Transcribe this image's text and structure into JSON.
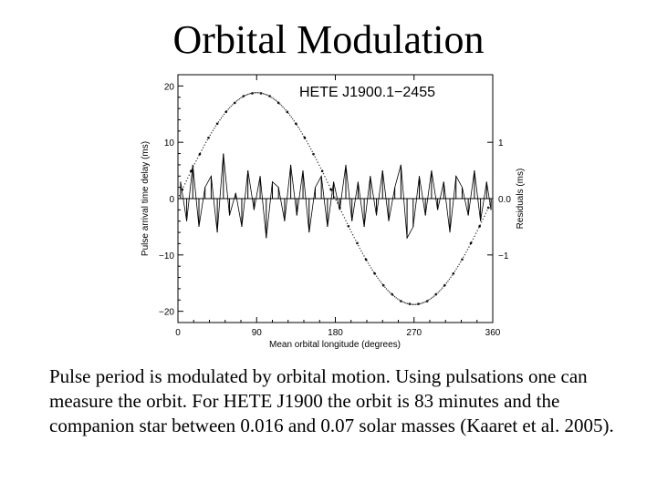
{
  "slide": {
    "title": "Orbital Modulation",
    "caption": "Pulse period is modulated by orbital motion.  Using pulsations one can measure the orbit.  For HETE J1900 the orbit is 83 minutes and the companion star between 0.016 and 0.07 solar masses (Kaaret et al. 2005)."
  },
  "chart_data": {
    "type": "scatter",
    "title": "HETE J1900.1−2455",
    "xlabel": "Mean orbital longitude (degrees)",
    "ylabel": "Pulse arrival time delay (ms)",
    "y2label": "Residuals (ms)",
    "xlim": [
      0,
      360
    ],
    "ylim": [
      -22,
      22
    ],
    "y2lim": [
      -2.2,
      2.2
    ],
    "xticks": [
      0,
      90,
      180,
      270,
      360
    ],
    "yticks": [
      -20,
      -10,
      0,
      10,
      20
    ],
    "y2ticks": [
      -1,
      0,
      1
    ],
    "xtick_labels": [
      "0",
      "90",
      "180",
      "270",
      "360"
    ],
    "ytick_labels": [
      "−20",
      "−10",
      "0",
      "10",
      "20"
    ],
    "y2tick_labels": [
      "−1",
      "0.0",
      "1"
    ],
    "grid": false,
    "series": [
      {
        "type": "scatter",
        "model": "sinusoid",
        "amplitude": 18.8,
        "phase_deg": 0,
        "x": [
          5,
          15,
          25,
          35,
          45,
          55,
          65,
          75,
          85,
          95,
          105,
          115,
          125,
          135,
          145,
          155,
          165,
          175,
          185,
          195,
          205,
          215,
          225,
          235,
          245,
          255,
          265,
          275,
          285,
          295,
          305,
          315,
          325,
          335,
          345,
          355
        ],
        "values": [
          1.6,
          4.9,
          7.9,
          10.8,
          13.3,
          15.4,
          17.0,
          18.2,
          18.7,
          18.7,
          18.2,
          17.0,
          15.4,
          13.3,
          10.8,
          7.9,
          4.9,
          1.6,
          -1.6,
          -4.9,
          -7.9,
          -10.8,
          -13.3,
          -15.4,
          -17.0,
          -18.2,
          -18.7,
          -18.7,
          -18.2,
          -17.0,
          -15.4,
          -13.3,
          -10.8,
          -7.9,
          -4.9,
          -1.6
        ]
      },
      {
        "type": "line",
        "axis": "y2",
        "x": [
          3,
          10,
          17,
          24,
          31,
          38,
          45,
          52,
          59,
          66,
          73,
          80,
          87,
          94,
          101,
          108,
          115,
          122,
          129,
          136,
          143,
          150,
          157,
          164,
          171,
          178,
          185,
          192,
          199,
          206,
          213,
          220,
          227,
          234,
          241,
          248,
          255,
          262,
          269,
          276,
          283,
          290,
          297,
          304,
          311,
          318,
          325,
          332,
          339,
          346,
          353,
          358
        ],
        "values": [
          0.3,
          -0.4,
          0.6,
          -0.5,
          0.2,
          0.4,
          -0.6,
          0.8,
          -0.3,
          0.1,
          -0.5,
          0.5,
          -0.2,
          0.4,
          -0.7,
          0.3,
          0.2,
          -0.4,
          0.6,
          -0.3,
          0.5,
          -0.6,
          0.2,
          0.4,
          -0.5,
          0.3,
          -0.2,
          0.6,
          -0.4,
          0.3,
          -0.5,
          0.4,
          -0.3,
          0.5,
          -0.4,
          0.2,
          0.6,
          -0.7,
          -0.5,
          0.4,
          -0.3,
          0.5,
          -0.2,
          0.3,
          -0.6,
          0.4,
          0.2,
          -0.3,
          0.5,
          -0.4,
          0.3,
          -0.2
        ]
      }
    ]
  }
}
